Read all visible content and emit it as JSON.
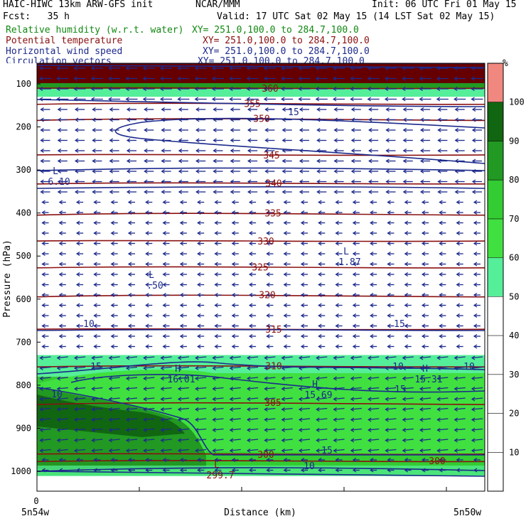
{
  "header": {
    "model": "HAIC-HIWC 13km ARW-GFS init",
    "center": "NCAR/MMM",
    "init": "Init: 06 UTC Fri 01 May 15",
    "fcst": "Fcst:   35 h",
    "valid": "Valid: 17 UTC Sat 02 May 15 (14 LST Sat 02 May 15)"
  },
  "fields": [
    {
      "name": "Relative humidity (w.r.t. water)",
      "xy": "XY= 251.0,100.0 to 284.7,100.0",
      "color": "#118811"
    },
    {
      "name": "Potential temperature",
      "xy": "XY= 251.0,100.0 to 284.7,100.0",
      "color": "#8b1010"
    },
    {
      "name": "Horizontal wind speed",
      "xy": "XY= 251.0,100.0 to 284.7,100.0",
      "color": "#1c2a8c"
    },
    {
      "name": "Circulation vectors",
      "xy": "XY= 251.0,100.0 to 284.7,100.0",
      "color": "#1c2a8c"
    }
  ],
  "chart_data": {
    "type": "heatmap",
    "ylabel": "Pressure (hPa)",
    "xlabel": "Distance (km)",
    "yticks": [
      100,
      200,
      300,
      400,
      500,
      600,
      700,
      800,
      900,
      1000
    ],
    "x_zero_label": "0",
    "x_left_label": "5n54w",
    "x_right_label": "5n50w",
    "ylim": [
      1050,
      55
    ],
    "colorbar": {
      "unit": "%",
      "levels": [
        10,
        20,
        30,
        40,
        50,
        60,
        70,
        80,
        90,
        100
      ],
      "colors": [
        "#ffffff",
        "#ffffff",
        "#ffffff",
        "#ffffff",
        "#ffffff",
        "#55ee99",
        "#40e040",
        "#33cc33",
        "#229922",
        "#116611",
        "#f08880"
      ]
    },
    "rh_layers": [
      {
        "p_top": 55,
        "p_bot": 97,
        "rh": 105
      },
      {
        "p_top": 97,
        "p_bot": 112,
        "rh": 85
      },
      {
        "p_top": 112,
        "p_bot": 130,
        "rh": 55
      },
      {
        "p_top": 730,
        "p_bot": 780,
        "rh": 55
      },
      {
        "p_top": 780,
        "p_bot": 1010,
        "rh": 75
      }
    ],
    "theta_contours": [
      {
        "value": 360,
        "label": "360",
        "p": 110
      },
      {
        "value": 355,
        "label": "355",
        "p": 145
      },
      {
        "value": 350,
        "label": "350",
        "p": 180
      },
      {
        "value": 345,
        "label": "345",
        "p": 265
      },
      {
        "value": 340,
        "label": "340",
        "p": 330
      },
      {
        "value": 335,
        "label": "335",
        "p": 400
      },
      {
        "value": 330,
        "label": "330",
        "p": 465
      },
      {
        "value": 325,
        "label": "325",
        "p": 525
      },
      {
        "value": 320,
        "label": "320",
        "p": 590
      },
      {
        "value": 315,
        "label": "315",
        "p": 670
      },
      {
        "value": 310,
        "label": "310",
        "p": 755
      },
      {
        "value": 305,
        "label": "305",
        "p": 840
      },
      {
        "value": 300,
        "label": "300",
        "p": 960
      },
      {
        "value": 300,
        "label": "300",
        "p": 975
      }
    ],
    "wind_contour_labels": [
      "10",
      "15",
      "15",
      "10",
      "15",
      "15",
      "15",
      "10",
      "10",
      "10"
    ],
    "extrema": [
      {
        "type": "L",
        "value": "6.10",
        "p": 245
      },
      {
        "type": "L",
        "value": "1.87",
        "p": 540
      },
      {
        "type": "L",
        "value": ".50",
        "p": 575
      },
      {
        "type": "H",
        "value": "16.01",
        "p": 780
      },
      {
        "type": "H",
        "value": "15.69",
        "p": 810
      },
      {
        "type": "H",
        "value": "15.31",
        "p": 780
      },
      {
        "type": "L",
        "value": "299.7",
        "p": 995
      }
    ]
  }
}
